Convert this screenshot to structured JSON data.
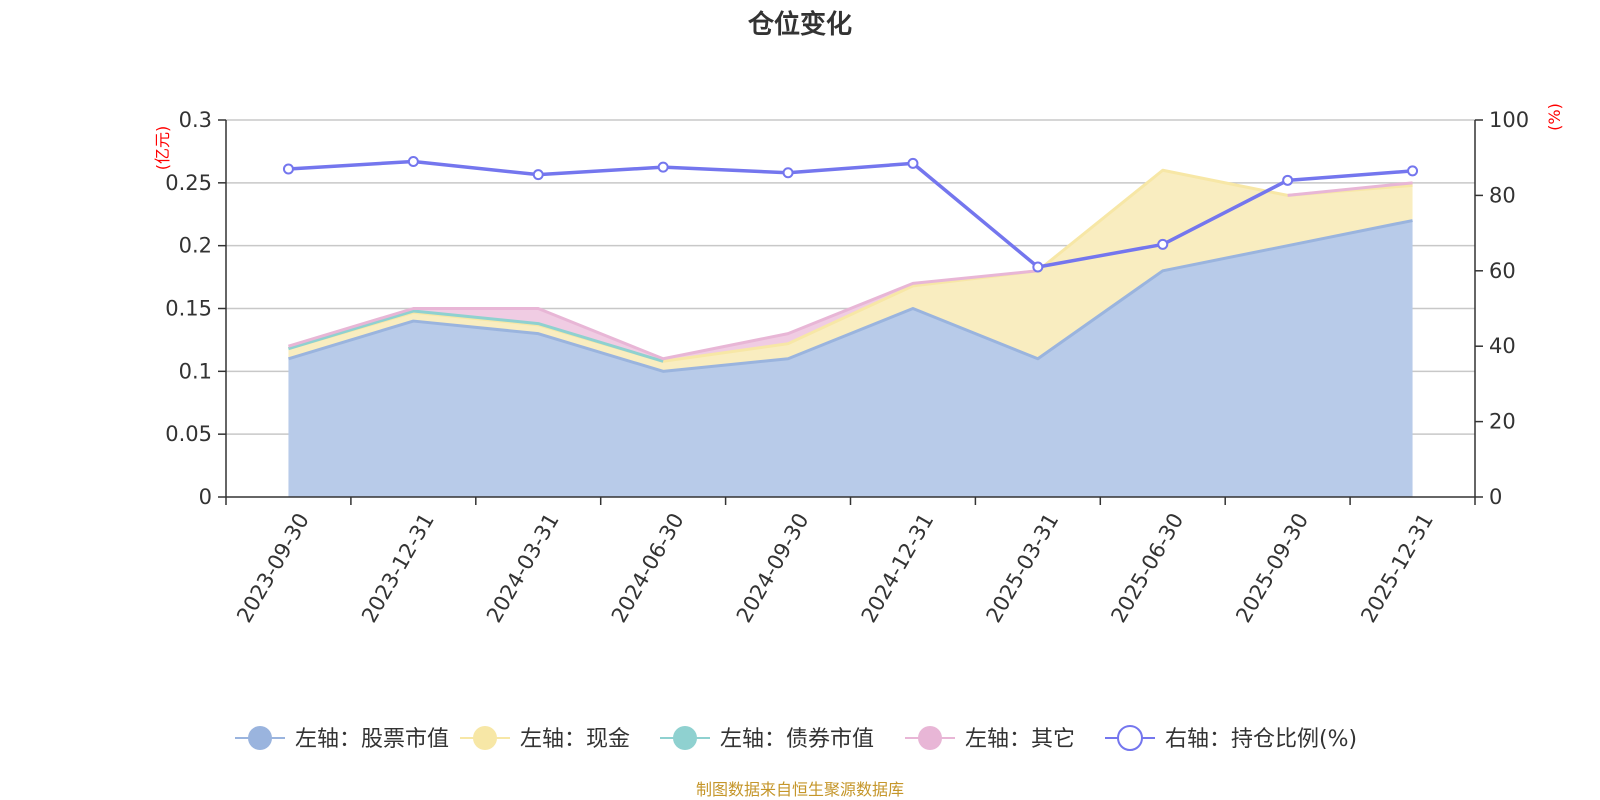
{
  "chart_data": {
    "type": "area",
    "title": "仓位变化",
    "categories": [
      "2023-09-30",
      "2023-12-31",
      "2024-03-31",
      "2024-06-30",
      "2024-09-30",
      "2024-12-31",
      "2025-03-31",
      "2025-06-30",
      "2025-09-30",
      "2025-12-31"
    ],
    "left_axis": {
      "unit": "(亿元)",
      "min": 0,
      "max": 0.3,
      "ticks": [
        "0",
        "0.05",
        "0.1",
        "0.15",
        "0.2",
        "0.25",
        "0.3"
      ]
    },
    "right_axis": {
      "unit": "(%)",
      "min": 0,
      "max": 100,
      "ticks": [
        "0",
        "20",
        "40",
        "60",
        "80",
        "100"
      ]
    },
    "series": [
      {
        "name": "左轴：股票市值",
        "axis": "left",
        "kind": "stacked-area",
        "color": "#9ab4de",
        "fill": "#b8cbe9",
        "values": [
          0.11,
          0.14,
          0.13,
          0.1,
          0.11,
          0.15,
          0.11,
          0.18,
          0.2,
          0.22
        ]
      },
      {
        "name": "左轴：现金",
        "axis": "left",
        "kind": "stacked-area",
        "color": "#f7e7a6",
        "fill": "#f9edc0",
        "values": [
          0.008,
          0.007,
          0.007,
          0.008,
          0.012,
          0.018,
          0.07,
          0.08,
          0.04,
          0.028
        ]
      },
      {
        "name": "左轴：债券市值",
        "axis": "left",
        "kind": "stacked-area",
        "color": "#8fd1d0",
        "fill": "#b8e2e1",
        "values": [
          0,
          0.001,
          0.001,
          0,
          0,
          0,
          0,
          0,
          0,
          0
        ]
      },
      {
        "name": "左轴：其它",
        "axis": "left",
        "kind": "stacked-area",
        "color": "#e8b6d6",
        "fill": "#f0cce3",
        "values": [
          0.002,
          0.002,
          0.012,
          0.002,
          0.008,
          0.002,
          0,
          0,
          0,
          0.002
        ]
      },
      {
        "name": "右轴：持仓比例(%)",
        "axis": "right",
        "kind": "line",
        "color": "#7476ee",
        "values": [
          87,
          89,
          85.5,
          87.5,
          86,
          88.5,
          61,
          67,
          84,
          86.5
        ]
      }
    ],
    "legend_position": "bottom",
    "grid": true
  },
  "source_note": "制图数据来自恒生聚源数据库"
}
